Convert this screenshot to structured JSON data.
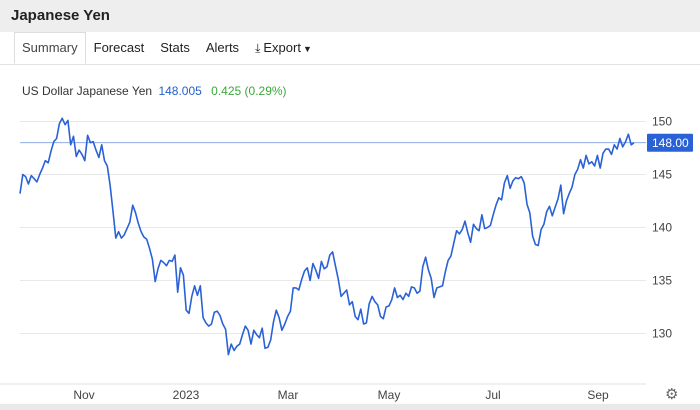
{
  "header": {
    "title": "Japanese Yen"
  },
  "tabs": [
    {
      "label": "Summary",
      "active": true
    },
    {
      "label": "Forecast"
    },
    {
      "label": "Stats"
    },
    {
      "label": "Alerts"
    },
    {
      "label": "Export",
      "icon": "download-icon",
      "dropdown": true
    }
  ],
  "quote": {
    "name": "US Dollar Japanese Yen",
    "price": "148.005",
    "change": "0.425 (0.29%)",
    "change_color": "#3aa83a"
  },
  "chart_data": {
    "type": "line",
    "line_color": "#2a62d6",
    "ylim": [
      125,
      152
    ],
    "y_ticks": [
      "130",
      "135",
      "140",
      "145",
      "150"
    ],
    "x_ticks": [
      "Nov",
      "2023",
      "Mar",
      "May",
      "Jul",
      "Sep"
    ],
    "last_value_label": "148.00",
    "last_value": 148.0,
    "series": [
      {
        "values": [
          143.2,
          145.0,
          144.8,
          144.1,
          144.9,
          144.6,
          144.3,
          145.0,
          145.6,
          146.3,
          146.1,
          147.2,
          148.1,
          148.4,
          149.8,
          150.3,
          149.7,
          150.1,
          147.8,
          148.6,
          146.7,
          147.3,
          146.9,
          146.3,
          148.7,
          148.0,
          148.1,
          147.3,
          146.6,
          147.8,
          146.3,
          145.8,
          144.0,
          141.6,
          139.0,
          139.6,
          139.0,
          139.3,
          139.9,
          140.5,
          142.1,
          141.4,
          140.4,
          139.6,
          139.1,
          138.9,
          138.0,
          137.0,
          134.9,
          136.1,
          136.9,
          136.7,
          136.4,
          136.9,
          136.8,
          137.4,
          133.9,
          136.2,
          135.5,
          132.2,
          131.9,
          133.5,
          134.5,
          133.6,
          134.5,
          131.5,
          131.0,
          130.7,
          130.9,
          132.0,
          132.1,
          131.7,
          130.9,
          130.4,
          128.0,
          129.0,
          128.4,
          128.8,
          129.0,
          129.9,
          130.7,
          130.3,
          129.0,
          130.3,
          129.9,
          129.6,
          130.5,
          128.6,
          128.7,
          129.4,
          131.1,
          132.2,
          131.5,
          130.3,
          130.9,
          131.6,
          132.1,
          134.3,
          134.3,
          134.1,
          135.1,
          135.9,
          136.2,
          135.0,
          136.6,
          136.0,
          135.2,
          136.8,
          136.1,
          136.3,
          137.4,
          137.7,
          136.4,
          135.1,
          133.5,
          133.8,
          134.1,
          132.7,
          133.0,
          131.6,
          131.3,
          132.3,
          130.9,
          131.0,
          132.8,
          133.5,
          133.0,
          132.7,
          131.6,
          131.4,
          132.5,
          132.6,
          133.2,
          134.3,
          133.4,
          133.6,
          133.2,
          133.8,
          133.5,
          134.4,
          134.3,
          133.8,
          134.0,
          136.3,
          137.2,
          136.0,
          135.2,
          133.4,
          134.3,
          134.4,
          134.5,
          135.8,
          136.9,
          137.3,
          138.5,
          139.7,
          139.4,
          139.8,
          140.6,
          139.5,
          138.6,
          140.3,
          139.9,
          139.7,
          141.2,
          139.9,
          140.0,
          140.2,
          141.2,
          142.1,
          142.8,
          142.6,
          144.2,
          144.9,
          143.7,
          144.4,
          144.7,
          144.6,
          144.8,
          144.2,
          142.2,
          141.4,
          139.2,
          138.4,
          138.3,
          139.8,
          140.3,
          141.5,
          142.0,
          141.1,
          141.9,
          142.7,
          144.0,
          141.3,
          142.5,
          143.2,
          143.8,
          145.0,
          145.5,
          146.4,
          145.6,
          146.8,
          146.0,
          146.2,
          145.8,
          146.8,
          145.6,
          147.0,
          147.4,
          147.4,
          146.9,
          147.8,
          147.4,
          148.4,
          147.6,
          148.1,
          148.8,
          147.8,
          148.0
        ]
      }
    ]
  }
}
